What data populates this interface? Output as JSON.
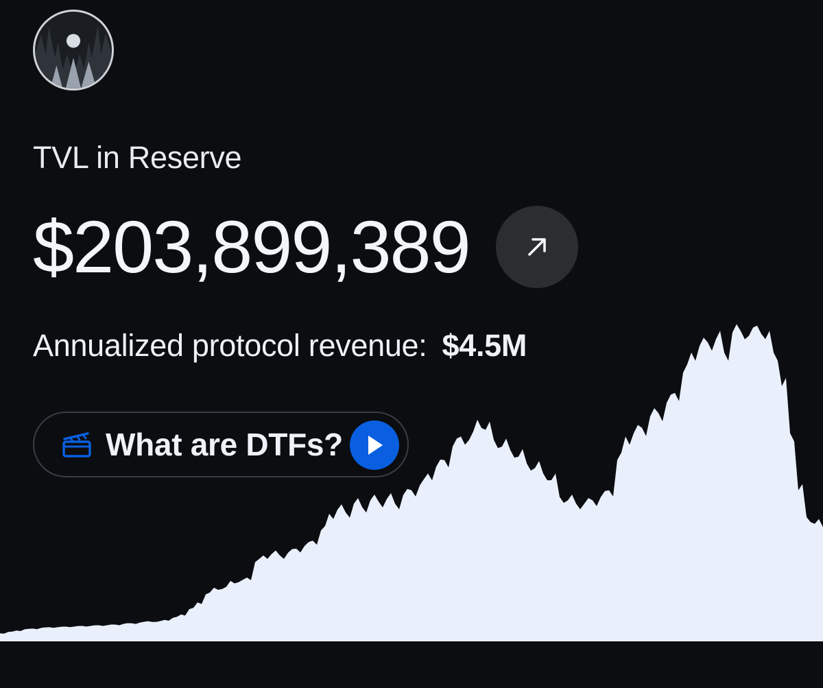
{
  "header": {
    "logo_icon": "forest-moon-avatar-icon"
  },
  "metric": {
    "label": "TVL in Reserve",
    "value": "$203,899,389",
    "link_icon": "arrow-up-right-icon"
  },
  "revenue": {
    "label": "Annualized protocol revenue:",
    "value": "$4.5M"
  },
  "cta": {
    "label": "What are DTFs?",
    "icon": "clapperboard-icon",
    "play_icon": "play-icon",
    "accent": "#0a5fe0"
  },
  "colors": {
    "background": "#0b0d10",
    "chart_fill": "#eaf0fb"
  },
  "chart_data": {
    "type": "area",
    "title": "",
    "xlabel": "",
    "ylabel": "",
    "grid": false,
    "legend": "none",
    "ylim": [
      0,
      480
    ],
    "values": [
      12,
      14,
      16,
      18,
      19,
      20,
      21,
      21,
      22,
      22,
      23,
      23,
      24,
      24,
      25,
      26,
      27,
      28,
      30,
      29,
      32,
      35,
      40,
      48,
      58,
      70,
      80,
      78,
      90,
      88,
      95,
      118,
      128,
      130,
      128,
      132,
      138,
      142,
      150,
      165,
      190,
      196,
      192,
      205,
      200,
      210,
      208,
      212,
      205,
      218,
      225,
      232,
      250,
      260,
      270,
      290,
      305,
      300,
      330,
      315,
      300,
      290,
      285,
      275,
      265,
      258,
      250,
      240,
      215,
      210,
      205,
      205,
      210,
      215,
      225,
      270,
      305,
      310,
      318,
      335,
      340,
      355,
      370,
      400,
      430,
      440,
      445,
      450,
      430,
      460,
      462,
      455,
      470,
      450,
      430,
      380,
      310,
      225,
      185,
      175,
      170
    ]
  }
}
